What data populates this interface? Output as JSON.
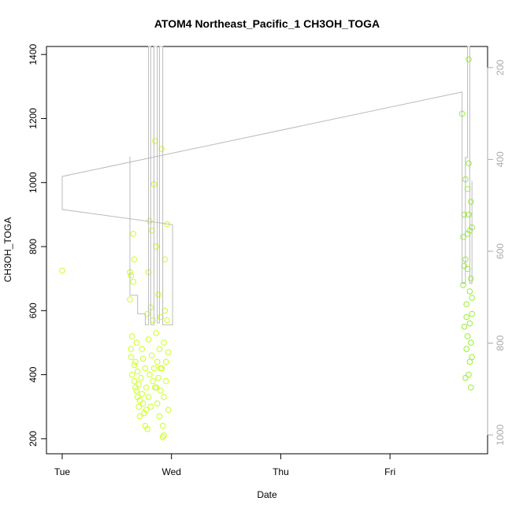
{
  "chart_data": {
    "type": "scatter",
    "title": "ATOM4 Northeast_Pacific_1 CH3OH_TOGA",
    "x_label": "Date",
    "y_label": "CH3OH_TOGA",
    "xlim": [
      -0.144,
      3.893
    ],
    "xticks": [
      {
        "value": 0,
        "label": "Tue"
      },
      {
        "value": 1,
        "label": "Wed"
      },
      {
        "value": 2,
        "label": "Thu"
      },
      {
        "value": 3,
        "label": "Fri"
      }
    ],
    "ylim": [
      153,
      1425
    ],
    "yticks": [
      200,
      400,
      600,
      800,
      1000,
      1200,
      1400
    ],
    "y2lim": [
      1041,
      154
    ],
    "y2ticks": [
      200,
      400,
      600,
      800,
      1000
    ],
    "series": [
      {
        "type": "scatter",
        "color": "#ccff22",
        "x": [
          0,
          0.62,
          0.62,
          0.63,
          0.63,
          0.64,
          0.64,
          0.65,
          0.65,
          0.66,
          0.66,
          0.67,
          0.67,
          0.68,
          0.68,
          0.69,
          0.69,
          0.7,
          0.7,
          0.71,
          0.72,
          0.73,
          0.73,
          0.74,
          0.75,
          0.76,
          0.76,
          0.77,
          0.77,
          0.78,
          0.78,
          0.79,
          0.79,
          0.8,
          0.8,
          0.81,
          0.81,
          0.82,
          0.82,
          0.83,
          0.83,
          0.84,
          0.84,
          0.85,
          0.85,
          0.86,
          0.86,
          0.87,
          0.87,
          0.88,
          0.88,
          0.89,
          0.89,
          0.9,
          0.9,
          0.91,
          0.91,
          0.92,
          0.92,
          0.93,
          0.93,
          0.94,
          0.94,
          0.95,
          0.95,
          0.96,
          0.96,
          0.97,
          0.97,
          0.63,
          0.66,
          0.71,
          0.74,
          0.79,
          0.86,
          0.9,
          0.93
        ],
        "values": [
          725,
          720,
          635,
          710,
          455,
          400,
          520,
          840,
          690,
          760,
          380,
          360,
          440,
          350,
          500,
          330,
          410,
          300,
          370,
          270,
          390,
          480,
          340,
          310,
          280,
          240,
          420,
          290,
          360,
          230,
          590,
          720,
          330,
          880,
          400,
          610,
          300,
          850,
          460,
          380,
          570,
          995,
          420,
          1130,
          360,
          530,
          800,
          440,
          310,
          650,
          390,
          480,
          270,
          580,
          350,
          420,
          1105,
          240,
          205,
          500,
          330,
          760,
          600,
          440,
          380,
          870,
          570,
          470,
          290,
          480,
          430,
          320,
          450,
          510,
          360,
          420,
          210
        ]
      },
      {
        "type": "scatter",
        "color": "#99ee33",
        "x": [
          3.66,
          3.67,
          3.67,
          3.68,
          3.68,
          3.69,
          3.69,
          3.69,
          3.7,
          3.7,
          3.71,
          3.71,
          3.71,
          3.72,
          3.72,
          3.72,
          3.73,
          3.73,
          3.73,
          3.73,
          3.74,
          3.74,
          3.74,
          3.74,
          3.75,
          3.75,
          3.75,
          3.75,
          3.72,
          3.7,
          3.68,
          3.71
        ],
        "values": [
          1215,
          830,
          680,
          900,
          550,
          1010,
          760,
          390,
          620,
          480,
          980,
          730,
          520,
          1385,
          1060,
          900,
          850,
          660,
          560,
          440,
          940,
          700,
          500,
          360,
          860,
          640,
          590,
          455,
          400,
          580,
          740,
          840
        ]
      },
      {
        "type": "line",
        "axis": "y2",
        "color": "#bbbbbb",
        "x": [
          0.62,
          0.62,
          0.69,
          0.69,
          0.76,
          0.76,
          0.79,
          0.79,
          0.81,
          0.81,
          0.84,
          0.84,
          0.87,
          0.87,
          0.89,
          0.89,
          0.92,
          0.92,
          1.01,
          1.01,
          0,
          0,
          3.66,
          3.66,
          3.69,
          3.69,
          3.71,
          3.71,
          3.73,
          3.73,
          3.75,
          3.75
        ],
        "values": [
          394,
          696,
          696,
          736,
          736,
          760,
          760,
          154,
          154,
          760,
          760,
          154,
          154,
          756,
          756,
          154,
          154,
          760,
          760,
          542,
          509,
          437,
          253,
          670,
          670,
          396,
          396,
          154,
          154,
          670,
          670,
          447
        ]
      }
    ]
  }
}
